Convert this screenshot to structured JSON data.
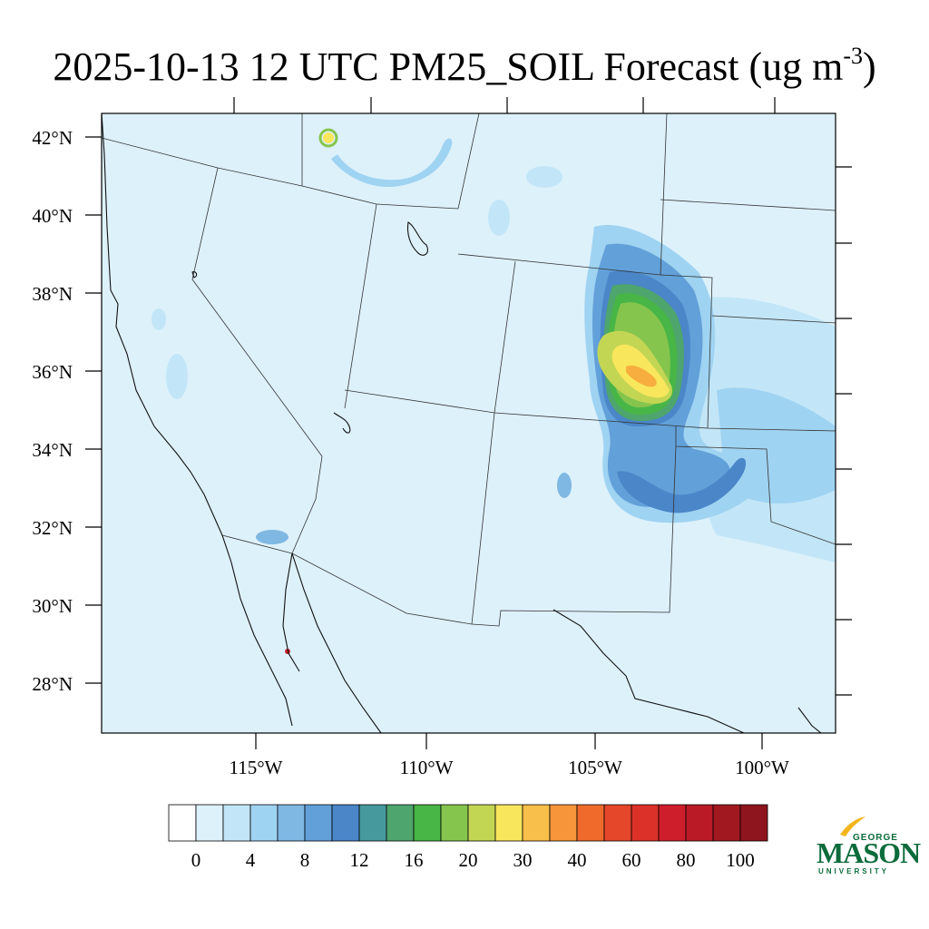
{
  "title": {
    "main": "2025-10-13 12 UTC PM25_SOIL Forecast (ug m",
    "sup": "-3",
    "close": ")"
  },
  "map": {
    "lat_labels": [
      "42°N",
      "40°N",
      "38°N",
      "36°N",
      "34°N",
      "32°N",
      "30°N",
      "28°N"
    ],
    "lon_labels": [
      "115°W",
      "110°W",
      "105°W",
      "100°W"
    ],
    "background_color": "#ddf1fb",
    "colors": {
      "lightest": "#ddf1fb",
      "light_blue": "#c2e6f7",
      "blue": "#9fd3f2",
      "mid_blue": "#7fb8e3",
      "blue2": "#62a0d9",
      "deep_blue": "#4a86c8",
      "teal": "#479a9e",
      "green": "#4ea56d",
      "bright_green": "#48b547",
      "lime": "#86c54d",
      "yellow_green": "#c3d654",
      "yellow": "#f8e65c",
      "orange": "#f8ae3e",
      "red": "#c9232a"
    }
  },
  "colorbar": {
    "colors": [
      "#ffffff",
      "#ddf1fb",
      "#c2e6f7",
      "#9fd3f2",
      "#7fb8e3",
      "#62a0d9",
      "#4a86c8",
      "#469a9e",
      "#4ea56d",
      "#48b547",
      "#86c54d",
      "#c3d654",
      "#f8e65c",
      "#f8bf4a",
      "#f6953a",
      "#f06a2c",
      "#e5472b",
      "#dc3128",
      "#cf1e2b",
      "#b91a25",
      "#a11820",
      "#8e151d"
    ],
    "labels": [
      "0",
      "4",
      "8",
      "12",
      "16",
      "20",
      "30",
      "40",
      "60",
      "80",
      "100"
    ]
  },
  "logo": {
    "top": "GEORGE",
    "middle": "MASON",
    "bottom": "UNIVERSITY",
    "color": "#0b6b3a",
    "accent_color": "#f2b51c"
  }
}
